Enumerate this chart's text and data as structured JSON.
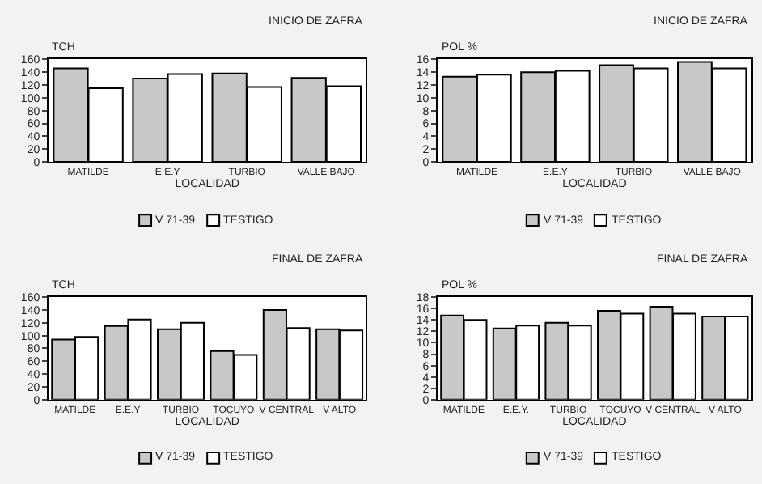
{
  "chart_data": [
    {
      "type": "bar",
      "title": "INICIO DE ZAFRA",
      "ylabel": "TCH",
      "xlabel": "LOCALIDAD",
      "categories": [
        "MATILDE",
        "E.E.Y",
        "TURBIO",
        "VALLE BAJO"
      ],
      "series": [
        {
          "name": "V 71-39",
          "color": "#c8c8c8",
          "values": [
            146,
            130,
            138,
            131
          ]
        },
        {
          "name": "TESTIGO",
          "color": "#ffffff",
          "values": [
            115,
            137,
            117,
            118
          ]
        }
      ],
      "ylim": [
        0,
        160
      ],
      "yticks": [
        0,
        20,
        40,
        60,
        80,
        100,
        120,
        140,
        160
      ],
      "legend": "bottom"
    },
    {
      "type": "bar",
      "title": "INICIO DE ZAFRA",
      "ylabel": "POL %",
      "xlabel": "LOCALIDAD",
      "categories": [
        "MATILDE",
        "E.E.Y",
        "TURBIO",
        "VALLE BAJO"
      ],
      "series": [
        {
          "name": "V 71-39",
          "color": "#c8c8c8",
          "values": [
            13.3,
            14.0,
            15.1,
            15.6
          ]
        },
        {
          "name": "TESTIGO",
          "color": "#ffffff",
          "values": [
            13.6,
            14.2,
            14.6,
            14.6
          ]
        }
      ],
      "ylim": [
        0,
        16
      ],
      "yticks": [
        0,
        2,
        4,
        6,
        8,
        10,
        12,
        14,
        16
      ],
      "legend": "bottom"
    },
    {
      "type": "bar",
      "title": "FINAL DE ZAFRA",
      "ylabel": "TCH",
      "xlabel": "LOCALIDAD",
      "categories": [
        "MATILDE",
        "E.E.Y",
        "TURBIO",
        "TOCUYO",
        "V CENTRAL",
        "V ALTO"
      ],
      "series": [
        {
          "name": "V 71-39",
          "color": "#c8c8c8",
          "values": [
            94,
            115,
            110,
            76,
            140,
            110
          ]
        },
        {
          "name": "TESTIGO",
          "color": "#ffffff",
          "values": [
            98,
            125,
            120,
            70,
            112,
            108
          ]
        }
      ],
      "ylim": [
        0,
        160
      ],
      "yticks": [
        0,
        20,
        40,
        60,
        80,
        100,
        120,
        140,
        160
      ],
      "legend": "bottom"
    },
    {
      "type": "bar",
      "title": "FINAL DE ZAFRA",
      "ylabel": "POL %",
      "xlabel": "LOCALIDAD",
      "categories": [
        "MATILDE",
        "E.E.Y.",
        "TURBIO",
        "TOCUYO",
        "V CENTRAL",
        "V ALTO"
      ],
      "series": [
        {
          "name": "V 71-39",
          "color": "#c8c8c8",
          "values": [
            14.8,
            12.5,
            13.5,
            15.6,
            16.3,
            14.6
          ]
        },
        {
          "name": "TESTIGO",
          "color": "#ffffff",
          "values": [
            14.0,
            13.0,
            13.0,
            15.1,
            15.1,
            14.6
          ]
        }
      ],
      "ylim": [
        0,
        18
      ],
      "yticks": [
        0,
        2,
        4,
        6,
        8,
        10,
        12,
        14,
        16,
        18
      ],
      "legend": "bottom"
    }
  ]
}
